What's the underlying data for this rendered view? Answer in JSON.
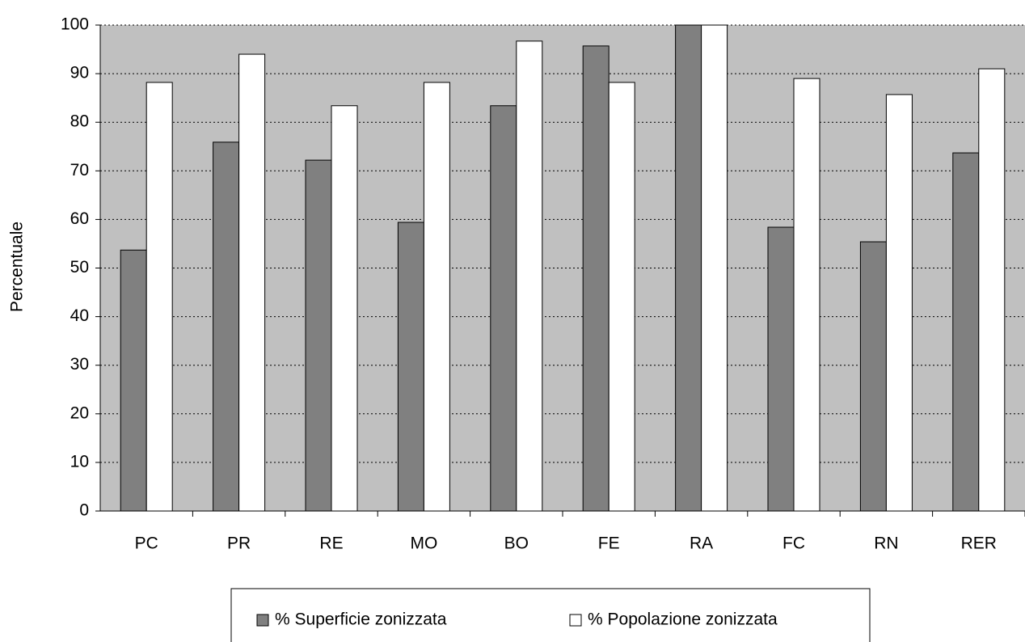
{
  "chart_data": {
    "type": "bar",
    "y_label": "Percentuale",
    "categories": [
      "PC",
      "PR",
      "RE",
      "MO",
      "BO",
      "FE",
      "RA",
      "FC",
      "RN",
      "RER"
    ],
    "series": [
      {
        "name": "% Superficie zonizzata",
        "color": "#808080",
        "values": [
          53.7,
          75.9,
          72.2,
          59.4,
          83.4,
          95.7,
          100,
          58.4,
          55.4,
          73.7
        ]
      },
      {
        "name": "% Popolazione zonizzata",
        "color": "#ffffff",
        "values": [
          88.2,
          94.0,
          83.4,
          88.2,
          96.7,
          88.2,
          100,
          89.0,
          85.7,
          91.0
        ]
      }
    ],
    "ylim": [
      0,
      100
    ],
    "yticks": [
      0,
      10,
      20,
      30,
      40,
      50,
      60,
      70,
      80,
      90,
      100
    ],
    "grid": true,
    "legend": "bottom",
    "plot_background": "#c0c0c0"
  }
}
